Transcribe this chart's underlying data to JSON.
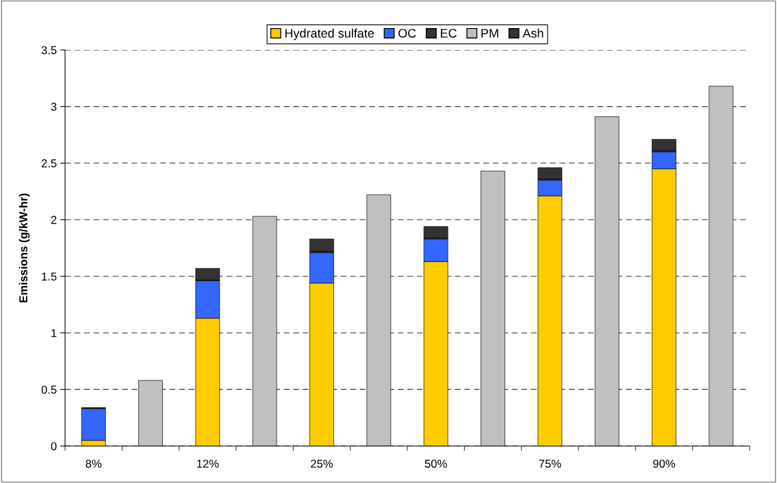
{
  "chart_data": {
    "type": "bar",
    "stacked": true,
    "ylabel": "Emissions (g/kW-hr)",
    "categories": [
      "8%",
      null,
      "12%",
      null,
      "25%",
      null,
      "50%",
      null,
      "75%",
      null,
      "90%",
      null
    ],
    "series": [
      {
        "name": "Hydrated sulfate",
        "color": "#ffcc00",
        "values": [
          0.05,
          null,
          1.13,
          null,
          1.44,
          null,
          1.63,
          null,
          2.21,
          null,
          2.45,
          null
        ]
      },
      {
        "name": "OC",
        "color": "#3366ff",
        "values": [
          0.28,
          null,
          0.33,
          null,
          0.27,
          null,
          0.2,
          null,
          0.14,
          null,
          0.15,
          null
        ]
      },
      {
        "name": "EC",
        "color": "#333333",
        "values": [
          0.01,
          null,
          0.01,
          null,
          0.01,
          null,
          0.01,
          null,
          0.01,
          null,
          0.01,
          null
        ]
      },
      {
        "name": "PM",
        "color": "#c0c0c0",
        "values": [
          null,
          0.58,
          null,
          2.03,
          null,
          2.22,
          null,
          2.43,
          null,
          2.91,
          null,
          3.18
        ]
      },
      {
        "name": "Ash",
        "color": "#333333",
        "values": [
          null,
          null,
          0.1,
          null,
          0.11,
          null,
          0.1,
          null,
          0.1,
          null,
          0.1,
          null
        ]
      }
    ],
    "ylim": [
      0,
      3.5
    ],
    "yticks": [
      0,
      0.5,
      1,
      1.5,
      2,
      2.5,
      3,
      3.5
    ],
    "grid": "y",
    "legend": "top"
  }
}
